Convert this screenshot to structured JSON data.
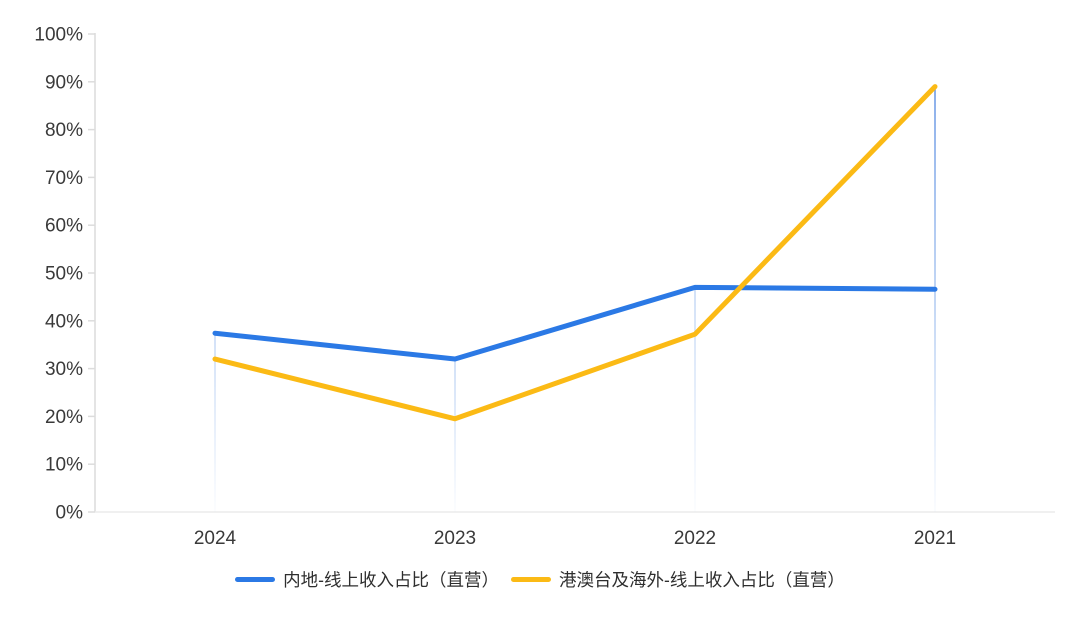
{
  "chart_data": {
    "type": "line",
    "categories": [
      "2024",
      "2023",
      "2022",
      "2021"
    ],
    "series": [
      {
        "name": "内地-线上收入占比（直营）",
        "color": "#2B79E5",
        "values": [
          37.4,
          32.0,
          47.0,
          46.6
        ]
      },
      {
        "name": "港澳台及海外-线上收入占比（直营）",
        "color": "#FBBA15",
        "values": [
          32.0,
          19.5,
          37.2,
          89.0
        ]
      }
    ],
    "title": "",
    "xlabel": "",
    "ylabel": "",
    "ylim": [
      0,
      100
    ],
    "ytick_step": 10,
    "ytick_suffix": "%",
    "grid": false,
    "legend_position": "bottom",
    "background_color": "#FFFFFF",
    "y_axis_color": "#DCDCDC",
    "x_axis_color": "#ECECEC",
    "tick_label_color": "#3A3A3A",
    "drop_lines": {
      "enabled": true,
      "color": "#7AA6E8",
      "highlighted_category": "2021"
    }
  }
}
